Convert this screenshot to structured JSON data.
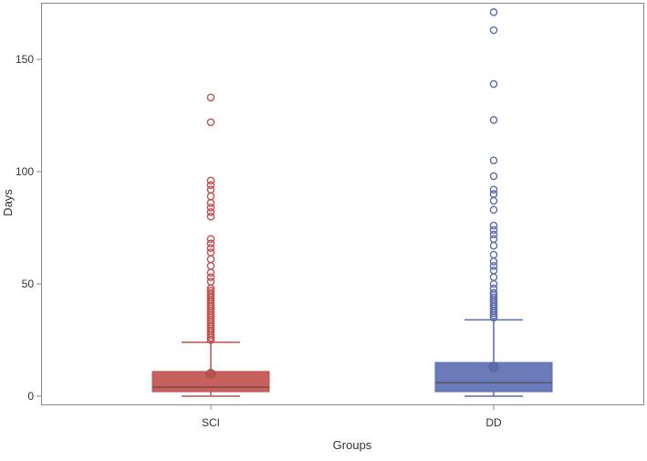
{
  "chart_data": {
    "type": "box",
    "xlabel": "Groups",
    "ylabel": "Days",
    "ylim": [
      -4,
      175
    ],
    "yticks": [
      0,
      50,
      100,
      150
    ],
    "grid": false,
    "categories": [
      "SCI",
      "DD"
    ],
    "series": [
      {
        "category": "SCI",
        "color": "#c0504d",
        "min": 0,
        "q1": 2,
        "median": 4,
        "q3": 11,
        "whisker_high": 24,
        "mean": 10,
        "outliers": [
          133,
          122,
          96,
          94,
          92,
          89,
          86,
          84,
          82,
          80,
          70,
          68,
          66,
          64,
          61,
          58,
          55,
          53,
          51,
          48,
          47,
          46,
          45,
          44,
          43,
          42,
          41,
          40,
          39,
          38,
          37,
          36,
          35,
          34,
          33,
          32,
          31,
          30,
          29,
          28,
          27,
          26,
          25
        ]
      },
      {
        "category": "DD",
        "color": "#5b6bb0",
        "min": 0,
        "q1": 2,
        "median": 6,
        "q3": 15,
        "whisker_high": 34,
        "mean": 13,
        "outliers": [
          171,
          163,
          139,
          123,
          105,
          98,
          92,
          90,
          87,
          83,
          76,
          74,
          72,
          70,
          67,
          63,
          60,
          58,
          56,
          53,
          50,
          48,
          46,
          45,
          44,
          43,
          42,
          41,
          40,
          39,
          38,
          37,
          36,
          35
        ]
      }
    ]
  }
}
